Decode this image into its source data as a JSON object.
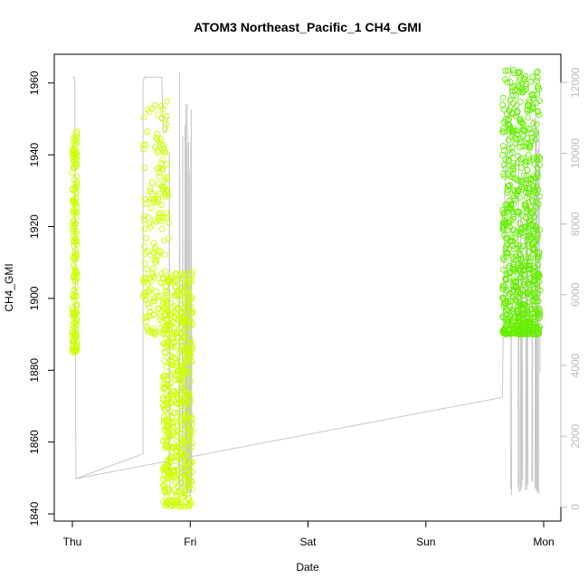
{
  "chart_data": {
    "type": "scatter",
    "title": "ATOM3 Northeast_Pacific_1 CH4_GMI",
    "xlabel": "Date",
    "ylabel": "CH4_GMI",
    "x_ticks": [
      "Thu",
      "Fri",
      "Sat",
      "Sun",
      "Mon"
    ],
    "x_range_days": [
      0,
      4
    ],
    "ylim": [
      1838,
      1968
    ],
    "y_ticks": [
      1840,
      1860,
      1880,
      1900,
      1920,
      1940,
      1960
    ],
    "y2lim": [
      -400,
      12800
    ],
    "y2_ticks": [
      0,
      2000,
      4000,
      6000,
      8000,
      10000,
      12000
    ],
    "grid": false,
    "colors": {
      "point_early": "#ccff00",
      "point_late": "#66ee00",
      "secondary_line": "#c8c8c8",
      "axis": "#000000",
      "y2_text": "#bbbbbb"
    },
    "series": [
      {
        "role": "points",
        "segments": [
          {
            "x": [
              0.0,
              0.04
            ],
            "y_min": 1885,
            "y_max": 1947
          },
          {
            "x": [
              0.6,
              0.82
            ],
            "y_min": 1890,
            "y_max": 1955
          },
          {
            "x": [
              0.77,
              1.02
            ],
            "y_min": 1842,
            "y_max": 1908
          },
          {
            "x": [
              3.65,
              3.97
            ],
            "y_min": 1890,
            "y_max": 1964
          }
        ]
      },
      {
        "role": "line",
        "axis": "right",
        "points": [
          [
            0.0,
            12150
          ],
          [
            0.02,
            12150
          ],
          [
            0.03,
            800
          ],
          [
            3.65,
            3100
          ],
          [
            3.67,
            9000
          ],
          [
            3.72,
            12500
          ],
          [
            3.97,
            3800
          ]
        ]
      }
    ]
  }
}
